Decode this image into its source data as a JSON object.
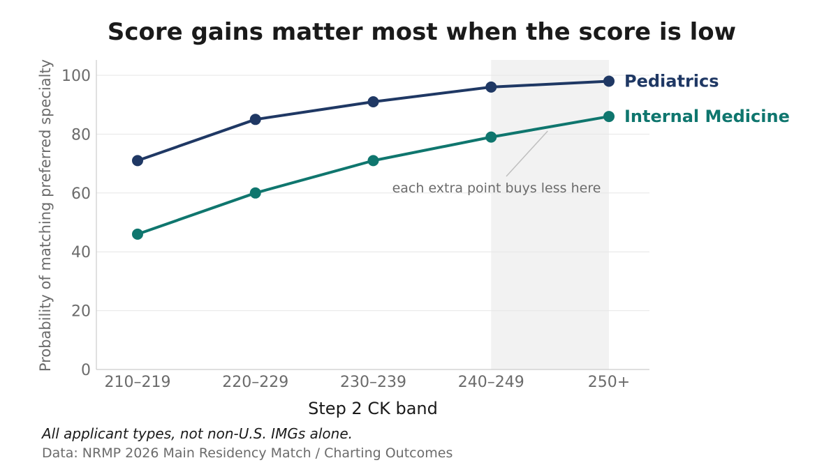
{
  "chart_data": {
    "type": "line",
    "title": "Score gains matter most when the score is low",
    "xlabel": "Step 2 CK band",
    "ylabel": "Probability of matching preferred specialty",
    "categories": [
      "210–219",
      "220–229",
      "230–239",
      "240–249",
      "250+"
    ],
    "ylim": [
      0,
      105
    ],
    "yticks": [
      0,
      20,
      40,
      60,
      80,
      100
    ],
    "grid": "horizontal",
    "series": [
      {
        "name": "Pediatrics",
        "values": [
          71,
          85,
          91,
          96,
          98
        ],
        "color": "#1f3864"
      },
      {
        "name": "Internal Medicine",
        "values": [
          46,
          60,
          71,
          79,
          86
        ],
        "color": "#0f766e"
      }
    ],
    "shaded_region": {
      "from": "240–249",
      "to": "250+",
      "color": "#f2f2f2"
    },
    "annotation": {
      "text": "each extra point buys less here",
      "points_to": {
        "category_between": [
          "240–249",
          "250+"
        ],
        "value": 82
      }
    },
    "note": "All applicant types, not non-U.S. IMGs alone.",
    "source": "Data: NRMP 2026 Main Residency Match / Charting Outcomes"
  }
}
